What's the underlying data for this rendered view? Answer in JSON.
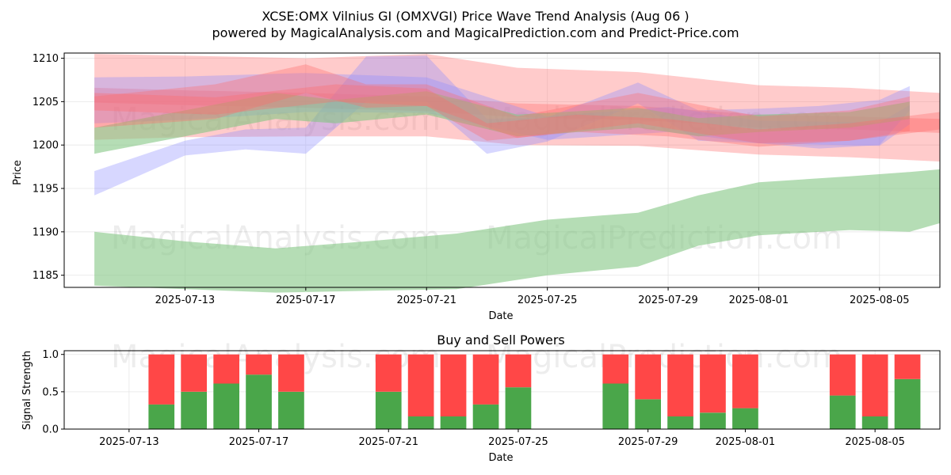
{
  "title_line1": "XCSE:OMX Vilnius GI (OMXVGI) Price Wave Trend Analysis (Aug 06 )",
  "title_line2": "powered by MagicalAnalysis.com and MagicalPrediction.com and Predict-Price.com",
  "watermarks": [
    "MagicalAnalysis.com",
    "MagicalPrediction.com"
  ],
  "colors": {
    "red_band": "#ff6b6b",
    "blue_band": "#8c8cff",
    "green_band": "#84c784",
    "buy": "#4aa64a",
    "sell": "#ff4747"
  },
  "chart_data": [
    {
      "type": "area",
      "subplot": "price",
      "xlabel": "Date",
      "ylabel": "Price",
      "ylim": [
        1183.6,
        1210.6
      ],
      "x_range": [
        "2025-07-09",
        "2025-08-07"
      ],
      "x_ticks": [
        "2025-07-13",
        "2025-07-17",
        "2025-07-21",
        "2025-07-25",
        "2025-07-29",
        "2025-08-01",
        "2025-08-05"
      ],
      "y_ticks": [
        1185,
        1190,
        1195,
        1200,
        1205,
        1210
      ],
      "grid": true,
      "bands": [
        {
          "color": "green",
          "x": [
            "2025-07-10",
            "2025-07-13",
            "2025-07-16",
            "2025-07-19",
            "2025-07-22",
            "2025-07-25",
            "2025-07-28",
            "2025-07-30",
            "2025-08-01",
            "2025-08-04",
            "2025-08-06",
            "2025-08-07"
          ],
          "upper": [
            1190.0,
            1188.9,
            1188.1,
            1188.9,
            1189.8,
            1191.4,
            1192.2,
            1194.2,
            1195.7,
            1196.4,
            1196.9,
            1197.2
          ],
          "lower": [
            1183.8,
            1183.4,
            1183.0,
            1183.2,
            1183.4,
            1185.0,
            1186.0,
            1188.4,
            1189.6,
            1190.2,
            1190.0,
            1191.0
          ]
        },
        {
          "color": "red",
          "x": [
            "2025-07-10",
            "2025-07-13",
            "2025-07-17",
            "2025-07-21",
            "2025-07-24",
            "2025-07-28",
            "2025-08-01",
            "2025-08-04",
            "2025-08-07"
          ],
          "upper": [
            1210.5,
            1210.3,
            1210.0,
            1210.5,
            1208.9,
            1208.4,
            1206.9,
            1206.6,
            1206.0
          ],
          "lower": [
            1200.6,
            1200.9,
            1201.0,
            1201.0,
            1200.0,
            1199.9,
            1198.9,
            1198.6,
            1198.1
          ]
        },
        {
          "color": "red",
          "x": [
            "2025-07-10",
            "2025-07-13",
            "2025-07-17",
            "2025-07-21",
            "2025-07-24",
            "2025-07-28",
            "2025-08-01",
            "2025-08-04",
            "2025-08-07"
          ],
          "upper": [
            1206.6,
            1206.3,
            1206.0,
            1205.6,
            1204.8,
            1204.5,
            1203.5,
            1203.3,
            1203.0
          ],
          "lower": [
            1204.9,
            1204.6,
            1204.3,
            1203.9,
            1203.2,
            1202.9,
            1202.0,
            1201.8,
            1201.4
          ]
        },
        {
          "color": "blue",
          "x": [
            "2025-07-10",
            "2025-07-13",
            "2025-07-15",
            "2025-07-17",
            "2025-07-19",
            "2025-07-21",
            "2025-07-23",
            "2025-07-25",
            "2025-07-28",
            "2025-07-30",
            "2025-08-01",
            "2025-08-03",
            "2025-08-05",
            "2025-08-06"
          ],
          "upper": [
            1197.0,
            1200.5,
            1201.8,
            1202.0,
            1210.2,
            1210.3,
            1203.0,
            1203.2,
            1207.2,
            1204.0,
            1204.2,
            1204.5,
            1205.2,
            1206.8
          ],
          "lower": [
            1194.2,
            1198.8,
            1199.5,
            1199.0,
            1205.0,
            1205.0,
            1199.0,
            1200.4,
            1204.8,
            1200.5,
            1200.2,
            1199.6,
            1200.0,
            1204.0
          ]
        },
        {
          "color": "blue",
          "x": [
            "2025-07-10",
            "2025-07-13",
            "2025-07-17",
            "2025-07-21",
            "2025-07-25",
            "2025-07-29",
            "2025-08-01",
            "2025-08-05",
            "2025-08-06"
          ],
          "upper": [
            1207.8,
            1207.9,
            1208.3,
            1207.8,
            1203.3,
            1204.4,
            1202.8,
            1202.6,
            1204.6
          ],
          "lower": [
            1202.5,
            1202.9,
            1203.8,
            1203.7,
            1200.6,
            1201.5,
            1200.2,
            1199.9,
            1202.4
          ]
        },
        {
          "color": "green",
          "x": [
            "2025-07-10",
            "2025-07-13",
            "2025-07-16",
            "2025-07-18",
            "2025-07-21",
            "2025-07-24",
            "2025-07-28",
            "2025-07-30",
            "2025-08-01",
            "2025-08-04",
            "2025-08-06"
          ],
          "upper": [
            1202.0,
            1204.0,
            1206.0,
            1205.2,
            1206.2,
            1203.5,
            1204.3,
            1203.1,
            1203.5,
            1203.8,
            1205.0
          ],
          "lower": [
            1199.0,
            1201.0,
            1203.0,
            1202.5,
            1203.5,
            1201.0,
            1202.0,
            1201.0,
            1201.5,
            1202.0,
            1203.0
          ]
        },
        {
          "color": "red",
          "x": [
            "2025-07-10",
            "2025-07-14",
            "2025-07-17",
            "2025-07-19",
            "2025-07-21",
            "2025-07-24",
            "2025-07-28",
            "2025-08-01",
            "2025-08-04",
            "2025-08-06"
          ],
          "upper": [
            1205.6,
            1207.0,
            1209.3,
            1207.0,
            1207.0,
            1203.3,
            1206.0,
            1203.3,
            1204.0,
            1205.6
          ],
          "lower": [
            1202.0,
            1203.0,
            1206.0,
            1204.3,
            1204.5,
            1200.8,
            1202.5,
            1200.2,
            1200.5,
            1201.6
          ]
        },
        {
          "color": "red",
          "x": [
            "2025-07-10",
            "2025-07-14",
            "2025-07-18",
            "2025-07-21",
            "2025-07-23",
            "2025-07-26",
            "2025-07-29",
            "2025-08-01",
            "2025-08-04",
            "2025-08-07"
          ],
          "upper": [
            1206.0,
            1205.5,
            1207.0,
            1206.5,
            1202.5,
            1203.5,
            1203.0,
            1201.8,
            1202.5,
            1203.8
          ],
          "lower": [
            1204.0,
            1203.5,
            1205.0,
            1204.5,
            1200.5,
            1201.5,
            1201.0,
            1199.8,
            1200.5,
            1201.8
          ]
        }
      ]
    },
    {
      "type": "bar",
      "subplot": "powers",
      "title": "Buy and Sell Powers",
      "xlabel": "Date",
      "ylabel": "Signal Strength",
      "ylim": [
        0,
        1.05
      ],
      "x_range": [
        "2025-07-11",
        "2025-08-07"
      ],
      "x_ticks": [
        "2025-07-13",
        "2025-07-17",
        "2025-07-21",
        "2025-07-25",
        "2025-07-29",
        "2025-08-01",
        "2025-08-05"
      ],
      "y_ticks": [
        "0.0",
        "0.5",
        "1.0"
      ],
      "grid": true,
      "dates": [
        "2025-07-14",
        "2025-07-15",
        "2025-07-16",
        "2025-07-17",
        "2025-07-18",
        "2025-07-21",
        "2025-07-22",
        "2025-07-23",
        "2025-07-24",
        "2025-07-25",
        "2025-07-28",
        "2025-07-29",
        "2025-07-30",
        "2025-07-31",
        "2025-08-01",
        "2025-08-04",
        "2025-08-05",
        "2025-08-06"
      ],
      "series": [
        {
          "name": "Buy",
          "values": [
            0.33,
            0.5,
            0.61,
            0.73,
            0.5,
            0.5,
            0.17,
            0.17,
            0.33,
            0.56,
            0.61,
            0.4,
            0.17,
            0.22,
            0.28,
            0.45,
            0.17,
            0.67
          ]
        },
        {
          "name": "Sell",
          "values": [
            0.67,
            0.5,
            0.39,
            0.27,
            0.5,
            0.5,
            0.83,
            0.83,
            0.67,
            0.44,
            0.39,
            0.6,
            0.83,
            0.78,
            0.72,
            0.55,
            0.83,
            0.33
          ]
        }
      ]
    }
  ]
}
